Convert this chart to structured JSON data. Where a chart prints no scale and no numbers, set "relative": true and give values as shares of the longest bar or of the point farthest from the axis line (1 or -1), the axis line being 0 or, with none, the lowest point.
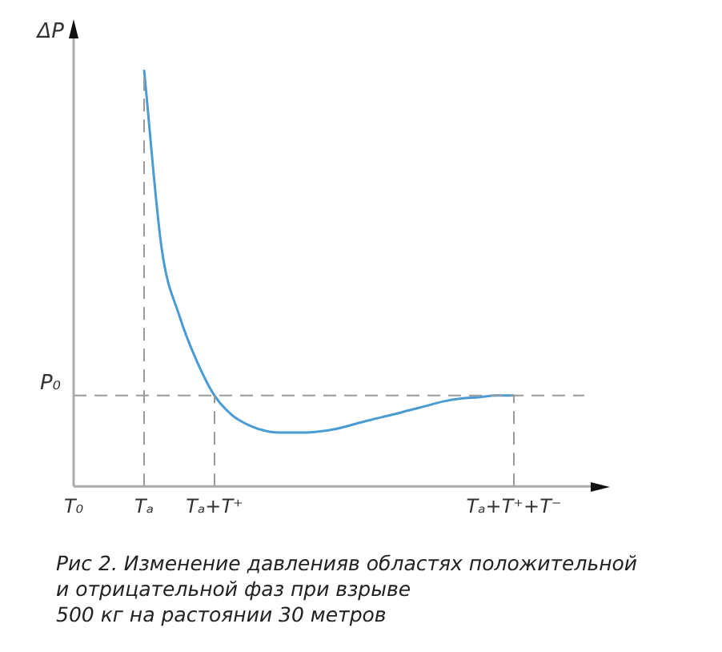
{
  "chart_data": {
    "type": "line",
    "relative": true,
    "ylabel": "ΔP",
    "grid": false,
    "legend": false,
    "marker": "none",
    "line_style": "solid",
    "categories": [
      "T₀",
      null,
      null,
      null,
      "Tₐ",
      null,
      null,
      null,
      "Tₐ+T⁺",
      null,
      null,
      null,
      null,
      null,
      null,
      null,
      null,
      null,
      null,
      null,
      null,
      null,
      null,
      null,
      null,
      "Tₐ+T⁺+T⁻",
      null,
      null,
      null,
      null
    ],
    "series": [
      {
        "color": "#4a9bd4",
        "values": [
          null,
          null,
          null,
          null,
          1,
          0.571,
          0.41,
          0.3,
          0.218,
          0.171,
          0.146,
          0.132,
          0.129,
          0.129,
          0.132,
          0.139,
          0.15,
          0.161,
          0.171,
          0.182,
          0.193,
          0.204,
          0.211,
          0.214,
          0.218,
          0.218,
          null,
          null,
          null,
          null
        ]
      }
    ],
    "ref_lines": [
      {
        "axis": "y",
        "value": 0.218,
        "label": "P₀",
        "color": "#999999",
        "line_style": "dashed"
      },
      {
        "axis": "x",
        "value": "Tₐ",
        "color": "#999999",
        "line_style": "dashed"
      },
      {
        "axis": "x",
        "value": "Tₐ+T⁺",
        "color": "#999999",
        "line_style": "dashed"
      },
      {
        "axis": "x",
        "value": "Tₐ+T⁺+T⁻",
        "color": "#999999",
        "line_style": "dashed"
      }
    ],
    "annotations": [
      "Рис 2. Изменение давленияв областях положительной",
      "и отрицательной фаз при взрыве",
      "500 кг на растоянии 30 метров"
    ]
  }
}
